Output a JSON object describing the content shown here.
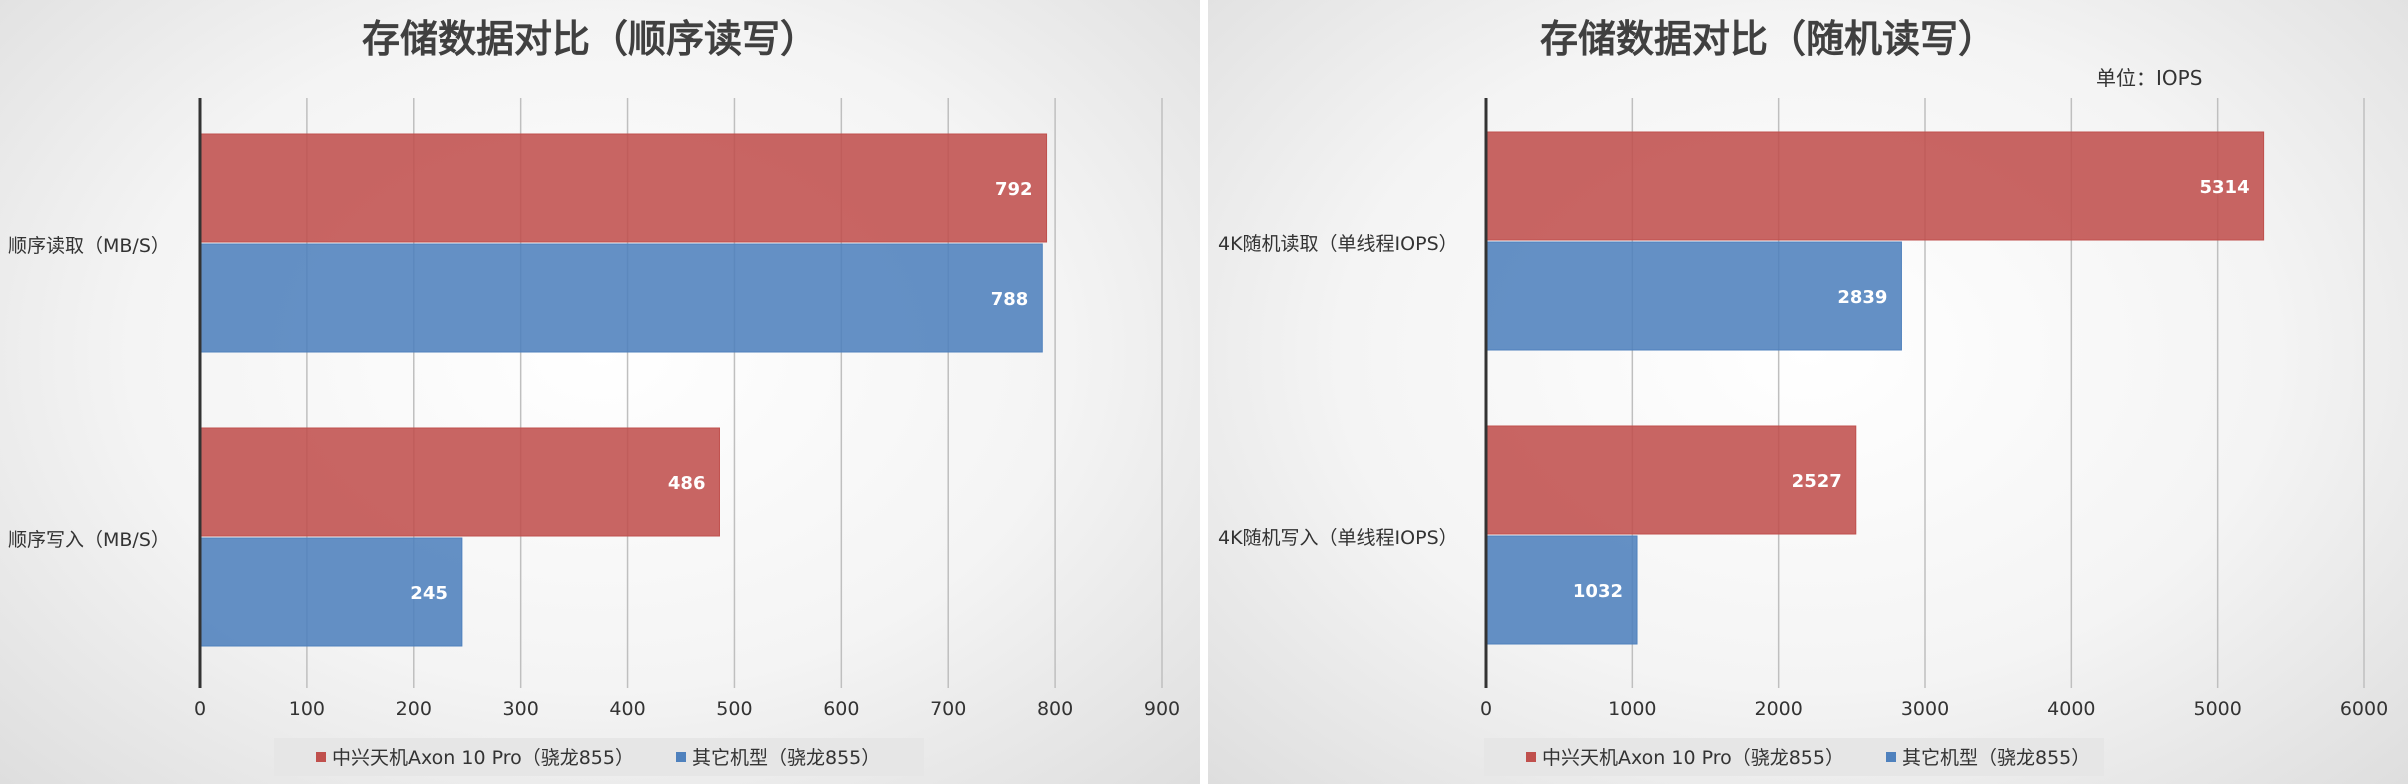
{
  "colors": {
    "series_a": "#c0504d",
    "series_b": "#4f81bd"
  },
  "chart_data": [
    {
      "type": "bar",
      "orientation": "horizontal",
      "title": "存储数据对比（顺序读写）",
      "unit_note": "",
      "categories": [
        "顺序读取（MB/S）",
        "顺序写入（MB/S）"
      ],
      "series": [
        {
          "name": "中兴天机Axon 10 Pro（骁龙855）",
          "values": [
            792,
            486
          ]
        },
        {
          "name": "其它机型（骁龙855）",
          "values": [
            788,
            245
          ]
        }
      ],
      "xlim": [
        0,
        900
      ],
      "xticks": [
        0,
        100,
        200,
        300,
        400,
        500,
        600,
        700,
        800,
        900
      ],
      "grid": true,
      "legend": "bottom"
    },
    {
      "type": "bar",
      "orientation": "horizontal",
      "title": "存储数据对比（随机读写）",
      "unit_note": "单位：IOPS",
      "categories": [
        "4K随机读取（单线程IOPS）",
        "4K随机写入（单线程IOPS）"
      ],
      "series": [
        {
          "name": "中兴天机Axon 10 Pro（骁龙855）",
          "values": [
            5314,
            2527
          ]
        },
        {
          "name": "其它机型（骁龙855）",
          "values": [
            2839,
            1032
          ]
        }
      ],
      "xlim": [
        0,
        6000
      ],
      "xticks": [
        0,
        1000,
        2000,
        3000,
        4000,
        5000,
        6000
      ],
      "grid": true,
      "legend": "bottom"
    }
  ]
}
